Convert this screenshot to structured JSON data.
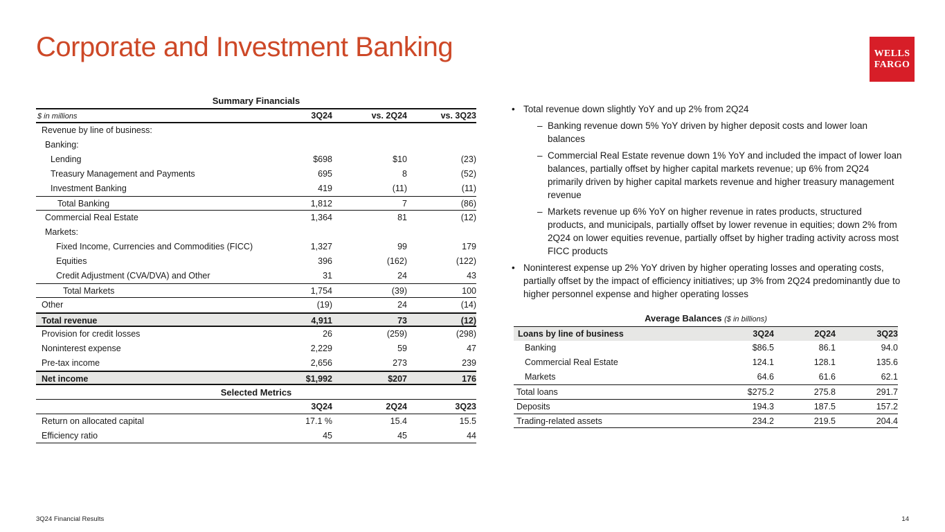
{
  "colors": {
    "accent": "#CD4827",
    "brand_red": "#D71E28",
    "row_shade": "#E7E7E5"
  },
  "header": {
    "title": "Corporate and Investment Banking",
    "logo_line1": "WELLS",
    "logo_line2": "FARGO"
  },
  "footer": {
    "left": "3Q24 Financial Results",
    "page_number": "14"
  },
  "markers": {
    "bullet": "•",
    "dash": "–"
  },
  "summary_financials": {
    "title": "Summary Financials",
    "unit_label": "$ in millions",
    "columns": [
      "3Q24",
      "vs. 2Q24",
      "vs. 3Q23"
    ],
    "rows": [
      {
        "label": "Revenue by line of business:",
        "values": [
          "",
          "",
          ""
        ],
        "indent": 0
      },
      {
        "label": "Banking:",
        "values": [
          "",
          "",
          ""
        ],
        "indent": 1
      },
      {
        "label": "Lending",
        "values": [
          "$698",
          "$10",
          "(23)"
        ],
        "indent": 2
      },
      {
        "label": "Treasury Management and Payments",
        "values": [
          "695",
          "8",
          "(52)"
        ],
        "indent": 2
      },
      {
        "label": "Investment Banking",
        "values": [
          "419",
          "(11)",
          "(11)"
        ],
        "indent": 2
      },
      {
        "label": "Total Banking",
        "values": [
          "1,812",
          "7",
          "(86)"
        ],
        "indent": 4,
        "bt": true,
        "bb": true
      },
      {
        "label": "Commercial Real Estate",
        "values": [
          "1,364",
          "81",
          "(12)"
        ],
        "indent": 1
      },
      {
        "label": "Markets:",
        "values": [
          "",
          "",
          ""
        ],
        "indent": 1
      },
      {
        "label": "Fixed Income, Currencies and Commodities (FICC)",
        "values": [
          "1,327",
          "99",
          "179"
        ],
        "indent": 3
      },
      {
        "label": "Equities",
        "values": [
          "396",
          "(162)",
          "(122)"
        ],
        "indent": 3
      },
      {
        "label": "Credit Adjustment (CVA/DVA) and Other",
        "values": [
          "31",
          "24",
          "43"
        ],
        "indent": 3
      },
      {
        "label": "Total Markets",
        "values": [
          "1,754",
          "(39)",
          "100"
        ],
        "indent": 5,
        "bt": true,
        "bb": true
      },
      {
        "label": "Other",
        "values": [
          "(19)",
          "24",
          "(14)"
        ],
        "indent": 0
      },
      {
        "label": "Total revenue",
        "values": [
          "4,911",
          "73",
          "(12)"
        ],
        "indent": 0,
        "bold": true,
        "shaded": true,
        "bt": true,
        "bb": true
      },
      {
        "label": "Provision for credit losses",
        "values": [
          "26",
          "(259)",
          "(298)"
        ],
        "indent": 0
      },
      {
        "label": "Noninterest expense",
        "values": [
          "2,229",
          "59",
          "47"
        ],
        "indent": 0
      },
      {
        "label": "Pre-tax income",
        "values": [
          "2,656",
          "273",
          "239"
        ],
        "indent": 0
      },
      {
        "label": "Net income",
        "values": [
          "$1,992",
          "$207",
          "176"
        ],
        "indent": 0,
        "bold": true,
        "shaded": true,
        "bt": true,
        "bb": true
      }
    ]
  },
  "selected_metrics": {
    "title": "Selected Metrics",
    "columns": [
      "3Q24",
      "2Q24",
      "3Q23"
    ],
    "rows": [
      {
        "label": "Return on allocated capital",
        "values": [
          "17.1 %",
          "15.4",
          "15.5"
        ],
        "indent": 0
      },
      {
        "label": "Efficiency ratio",
        "values": [
          "45",
          "45",
          "44"
        ],
        "indent": 0
      }
    ]
  },
  "commentary": {
    "bullets": [
      {
        "level": 1,
        "text": "Total revenue down slightly YoY and up 2% from 2Q24"
      },
      {
        "level": 2,
        "text": "Banking revenue down 5% YoY driven by higher deposit costs and lower loan balances"
      },
      {
        "level": 2,
        "text": "Commercial Real Estate revenue down 1% YoY and included the impact of lower loan balances, partially offset by higher capital markets revenue; up 6% from 2Q24 primarily driven by higher capital markets revenue and higher treasury management revenue"
      },
      {
        "level": 2,
        "text": "Markets revenue up 6% YoY on higher revenue in rates products, structured products, and municipals, partially offset by lower revenue in equities; down 2% from 2Q24 on lower equities revenue, partially offset by higher trading activity across most FICC products"
      },
      {
        "level": 1,
        "text": "Noninterest expense up 2% YoY driven by higher operating losses and operating costs, partially offset by the impact of efficiency initiatives; up 3% from 2Q24 predominantly due to higher personnel expense and higher operating losses"
      }
    ]
  },
  "average_balances": {
    "title": "Average Balances",
    "unit_label": "($ in billions)",
    "row_header": "Loans by line of business",
    "columns": [
      "3Q24",
      "2Q24",
      "3Q23"
    ],
    "rows": [
      {
        "label": "Banking",
        "values": [
          "$86.5",
          "86.1",
          "94.0"
        ],
        "indent": 1
      },
      {
        "label": "Commercial Real Estate",
        "values": [
          "124.1",
          "128.1",
          "135.6"
        ],
        "indent": 1
      },
      {
        "label": "Markets",
        "values": [
          "64.6",
          "61.6",
          "62.1"
        ],
        "indent": 1
      },
      {
        "label": "Total loans",
        "values": [
          "$275.2",
          "275.8",
          "291.7"
        ],
        "indent": 0,
        "bt": true
      },
      {
        "label": "Deposits",
        "values": [
          "194.3",
          "187.5",
          "157.2"
        ],
        "indent": 0,
        "bt": true
      },
      {
        "label": "Trading-related assets",
        "values": [
          "234.2",
          "219.5",
          "204.4"
        ],
        "indent": 0,
        "bt": true,
        "bb": true
      }
    ]
  }
}
